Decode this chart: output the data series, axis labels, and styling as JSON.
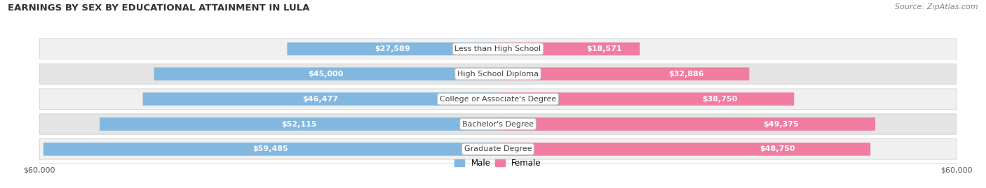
{
  "title": "EARNINGS BY SEX BY EDUCATIONAL ATTAINMENT IN LULA",
  "source": "Source: ZipAtlas.com",
  "categories": [
    "Less than High School",
    "High School Diploma",
    "College or Associate's Degree",
    "Bachelor's Degree",
    "Graduate Degree"
  ],
  "male_values": [
    27589,
    45000,
    46477,
    52115,
    59485
  ],
  "female_values": [
    18571,
    32886,
    38750,
    49375,
    48750
  ],
  "male_labels": [
    "$27,589",
    "$45,000",
    "$46,477",
    "$52,115",
    "$59,485"
  ],
  "female_labels": [
    "$18,571",
    "$32,886",
    "$38,750",
    "$49,375",
    "$48,750"
  ],
  "male_color": "#82b8e0",
  "female_color": "#f07ca0",
  "row_bg_light": "#f0f0f0",
  "row_bg_dark": "#e4e4e4",
  "max_value": 60000,
  "axis_label": "$60,000",
  "title_fontsize": 9.5,
  "source_fontsize": 8,
  "label_fontsize": 8,
  "cat_fontsize": 8
}
